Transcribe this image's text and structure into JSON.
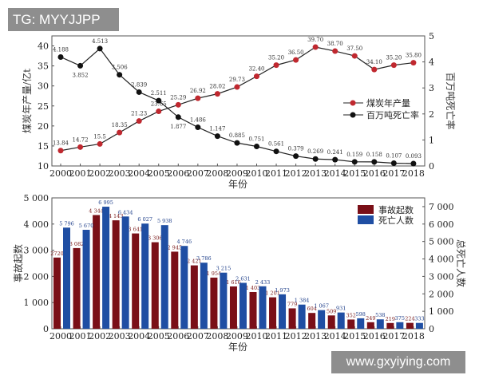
{
  "watermarks": {
    "top_left": "TG: MYYJJPP",
    "bottom_right": "www.gxyiying.com"
  },
  "colors": {
    "red": "#c0282f",
    "black": "#111111",
    "bar_red": "#7a0f17",
    "bar_blue": "#1f4ea3"
  },
  "chart_data": [
    {
      "type": "line",
      "xlabel": "年份",
      "ylabel": "煤炭年产量/亿t",
      "y2label": "百万吨死亡率",
      "ylim": [
        10,
        42.5
      ],
      "y2lim": [
        0,
        5
      ],
      "yticks": [
        10,
        15,
        20,
        25,
        30,
        35,
        40
      ],
      "y2ticks": [
        0,
        1,
        2,
        3,
        4,
        5
      ],
      "legend_position": "center-right",
      "categories": [
        "2000",
        "2001",
        "2002",
        "2003",
        "2004",
        "2005",
        "2006",
        "2007",
        "2008",
        "2009",
        "2010",
        "2011",
        "2012",
        "2013",
        "2014",
        "2015",
        "2016",
        "2017",
        "2018"
      ],
      "series": [
        {
          "name": "煤炭年产量",
          "axis": "left",
          "values": [
            13.84,
            14.72,
            15.5,
            18.35,
            21.23,
            23.65,
            25.29,
            26.92,
            28.02,
            29.73,
            32.4,
            35.2,
            36.5,
            39.7,
            38.7,
            37.5,
            34.1,
            35.2,
            35.8
          ],
          "labels": [
            "13.84",
            "14.72",
            "15.5",
            "18.35",
            "21.23",
            "23.65",
            "25.29",
            "26.92",
            "28.02",
            "29.73",
            "32.40",
            "35.20",
            "36.50",
            "39.70",
            "38.70",
            "37.50",
            "34.10",
            "35.20",
            "35.80"
          ]
        },
        {
          "name": "百万吨死亡率",
          "axis": "right",
          "values": [
            4.188,
            3.852,
            4.513,
            3.506,
            2.839,
            2.511,
            1.877,
            1.486,
            1.147,
            0.885,
            0.751,
            0.561,
            0.379,
            0.269,
            0.241,
            0.159,
            0.158,
            0.107,
            0.093
          ],
          "labels": [
            "4.188",
            "3.852",
            "4.513",
            "3.506",
            "2.839",
            "2.511",
            "1.877",
            "1.486",
            "1.147",
            "0.885",
            "0.751",
            "0.561",
            "0.379",
            "0.269",
            "0.241",
            "0.159",
            "0.158",
            "0.107",
            "0.093"
          ]
        }
      ]
    },
    {
      "type": "bar",
      "xlabel": "年份",
      "ylabel": "事故起数",
      "y2label": "总死亡人数",
      "ylim": [
        0,
        5000
      ],
      "y2lim": [
        0,
        7500
      ],
      "yticks": [
        "0",
        "1 000",
        "2 000",
        "3 000",
        "4 000",
        "5 000"
      ],
      "y2ticks": [
        "0",
        "1 000",
        "2 000",
        "3 000",
        "4 000",
        "5 000",
        "6 000",
        "7 000"
      ],
      "legend_position": "top-right",
      "categories": [
        "2000",
        "2001",
        "2002",
        "2003",
        "2004",
        "2005",
        "2006",
        "2007",
        "2008",
        "2009",
        "2010",
        "2011",
        "2012",
        "2013",
        "2014",
        "2015",
        "2016",
        "2017",
        "2018"
      ],
      "series": [
        {
          "name": "事故起数",
          "axis": "left",
          "values": [
            2720,
            3082,
            4344,
            4143,
            3641,
            3306,
            2945,
            2421,
            1954,
            1616,
            1403,
            1201,
            779,
            604,
            509,
            352,
            249,
            219,
            224
          ],
          "labels": [
            "2720",
            "3 082",
            "4 344",
            "4 143",
            "3 641",
            "3 306",
            "2 945",
            "2 421",
            "1 954",
            "1 616",
            "1 403",
            "1 201",
            "779",
            "604",
            "509",
            "352",
            "249",
            "219",
            "224"
          ]
        },
        {
          "name": "死亡人数",
          "axis": "right",
          "values": [
            5796,
            5670,
            6995,
            6434,
            6027,
            5938,
            4746,
            3786,
            3215,
            2631,
            2433,
            1973,
            1384,
            1067,
            931,
            598,
            538,
            375,
            333
          ],
          "labels": [
            "5 796",
            "5 670",
            "6 995",
            "6 434",
            "6 027",
            "5 938",
            "4 746",
            "3 786",
            "3 215",
            "2 631",
            "2 433",
            "1 973",
            "1 384",
            "1 067",
            "931",
            "598",
            "538",
            "375",
            "333"
          ]
        }
      ]
    }
  ]
}
